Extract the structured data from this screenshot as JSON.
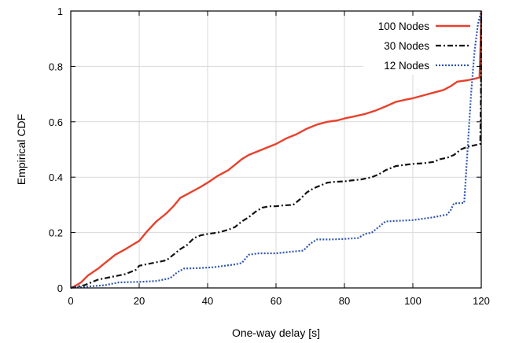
{
  "chart_data": {
    "type": "line",
    "title": "",
    "xlabel": "One-way delay [s]",
    "ylabel": "Empirical CDF",
    "xlim": [
      0,
      120
    ],
    "ylim": [
      0,
      1
    ],
    "x_ticks": [
      0,
      20,
      40,
      60,
      80,
      100,
      120
    ],
    "y_ticks": [
      0,
      0.2,
      0.4,
      0.6,
      0.8,
      1
    ],
    "x_tick_labels": [
      "0",
      "20",
      "40",
      "60",
      "80",
      "100",
      "120"
    ],
    "y_tick_labels": [
      "0",
      "0.2",
      "0.4",
      "0.6",
      "0.8",
      "1"
    ],
    "grid": true,
    "legend_position": "top-right",
    "series": [
      {
        "name": "100 Nodes",
        "color": "#e8412c",
        "style": "solid",
        "points": [
          [
            0,
            0
          ],
          [
            1,
            0.005
          ],
          [
            3,
            0.02
          ],
          [
            5,
            0.045
          ],
          [
            8,
            0.07
          ],
          [
            10,
            0.09
          ],
          [
            13,
            0.12
          ],
          [
            16,
            0.14
          ],
          [
            18,
            0.155
          ],
          [
            20,
            0.17
          ],
          [
            22,
            0.2
          ],
          [
            25,
            0.24
          ],
          [
            28,
            0.27
          ],
          [
            30,
            0.295
          ],
          [
            32,
            0.325
          ],
          [
            35,
            0.345
          ],
          [
            38,
            0.365
          ],
          [
            40,
            0.38
          ],
          [
            43,
            0.405
          ],
          [
            46,
            0.425
          ],
          [
            48,
            0.445
          ],
          [
            50,
            0.465
          ],
          [
            52,
            0.48
          ],
          [
            55,
            0.495
          ],
          [
            58,
            0.51
          ],
          [
            60,
            0.52
          ],
          [
            63,
            0.54
          ],
          [
            66,
            0.555
          ],
          [
            69,
            0.575
          ],
          [
            72,
            0.59
          ],
          [
            75,
            0.6
          ],
          [
            78,
            0.605
          ],
          [
            80,
            0.612
          ],
          [
            83,
            0.62
          ],
          [
            86,
            0.628
          ],
          [
            89,
            0.64
          ],
          [
            92,
            0.655
          ],
          [
            95,
            0.672
          ],
          [
            98,
            0.68
          ],
          [
            100,
            0.685
          ],
          [
            103,
            0.695
          ],
          [
            106,
            0.705
          ],
          [
            109,
            0.715
          ],
          [
            111,
            0.728
          ],
          [
            113,
            0.745
          ],
          [
            116,
            0.75
          ],
          [
            118,
            0.755
          ],
          [
            119.5,
            0.76
          ],
          [
            119.8,
            0.88
          ],
          [
            120,
            1.0
          ]
        ]
      },
      {
        "name": "30 Nodes",
        "color": "#111111",
        "style": "dashdot",
        "points": [
          [
            0,
            0
          ],
          [
            2,
            0.005
          ],
          [
            4,
            0.01
          ],
          [
            6,
            0.02
          ],
          [
            8,
            0.03
          ],
          [
            10,
            0.035
          ],
          [
            12,
            0.04
          ],
          [
            14,
            0.045
          ],
          [
            16,
            0.05
          ],
          [
            19,
            0.065
          ],
          [
            20,
            0.08
          ],
          [
            22,
            0.085
          ],
          [
            24,
            0.09
          ],
          [
            26,
            0.095
          ],
          [
            28,
            0.1
          ],
          [
            30,
            0.12
          ],
          [
            32,
            0.14
          ],
          [
            34,
            0.155
          ],
          [
            36,
            0.18
          ],
          [
            38,
            0.19
          ],
          [
            40,
            0.195
          ],
          [
            43,
            0.2
          ],
          [
            46,
            0.21
          ],
          [
            48,
            0.22
          ],
          [
            50,
            0.24
          ],
          [
            52,
            0.255
          ],
          [
            54,
            0.275
          ],
          [
            56,
            0.29
          ],
          [
            58,
            0.295
          ],
          [
            60,
            0.295
          ],
          [
            62,
            0.298
          ],
          [
            65,
            0.3
          ],
          [
            67,
            0.32
          ],
          [
            69,
            0.345
          ],
          [
            71,
            0.36
          ],
          [
            73,
            0.37
          ],
          [
            75,
            0.38
          ],
          [
            77,
            0.383
          ],
          [
            80,
            0.385
          ],
          [
            82,
            0.388
          ],
          [
            85,
            0.392
          ],
          [
            88,
            0.4
          ],
          [
            90,
            0.41
          ],
          [
            92,
            0.425
          ],
          [
            95,
            0.44
          ],
          [
            98,
            0.445
          ],
          [
            100,
            0.448
          ],
          [
            103,
            0.45
          ],
          [
            106,
            0.455
          ],
          [
            108,
            0.465
          ],
          [
            110,
            0.47
          ],
          [
            112,
            0.48
          ],
          [
            114,
            0.5
          ],
          [
            116,
            0.51
          ],
          [
            118,
            0.515
          ],
          [
            119.7,
            0.52
          ],
          [
            119.9,
            0.7
          ],
          [
            120,
            1.0
          ]
        ]
      },
      {
        "name": "12 Nodes",
        "color": "#2f56b0",
        "style": "dotted",
        "points": [
          [
            0,
            0
          ],
          [
            5,
            0.005
          ],
          [
            10,
            0.01
          ],
          [
            14,
            0.02
          ],
          [
            20,
            0.022
          ],
          [
            25,
            0.025
          ],
          [
            29,
            0.035
          ],
          [
            31,
            0.055
          ],
          [
            33,
            0.07
          ],
          [
            38,
            0.072
          ],
          [
            42,
            0.075
          ],
          [
            45,
            0.08
          ],
          [
            48,
            0.085
          ],
          [
            50,
            0.09
          ],
          [
            52,
            0.12
          ],
          [
            55,
            0.125
          ],
          [
            60,
            0.125
          ],
          [
            64,
            0.13
          ],
          [
            68,
            0.135
          ],
          [
            70,
            0.16
          ],
          [
            72,
            0.175
          ],
          [
            76,
            0.175
          ],
          [
            80,
            0.177
          ],
          [
            84,
            0.18
          ],
          [
            86,
            0.195
          ],
          [
            88,
            0.2
          ],
          [
            90,
            0.22
          ],
          [
            92,
            0.24
          ],
          [
            95,
            0.242
          ],
          [
            100,
            0.245
          ],
          [
            103,
            0.25
          ],
          [
            106,
            0.255
          ],
          [
            110,
            0.265
          ],
          [
            111,
            0.28
          ],
          [
            112,
            0.305
          ],
          [
            115,
            0.307
          ],
          [
            116,
            0.5
          ],
          [
            117,
            0.7
          ],
          [
            118,
            0.85
          ],
          [
            119,
            0.95
          ],
          [
            120,
            1.0
          ]
        ]
      }
    ]
  }
}
